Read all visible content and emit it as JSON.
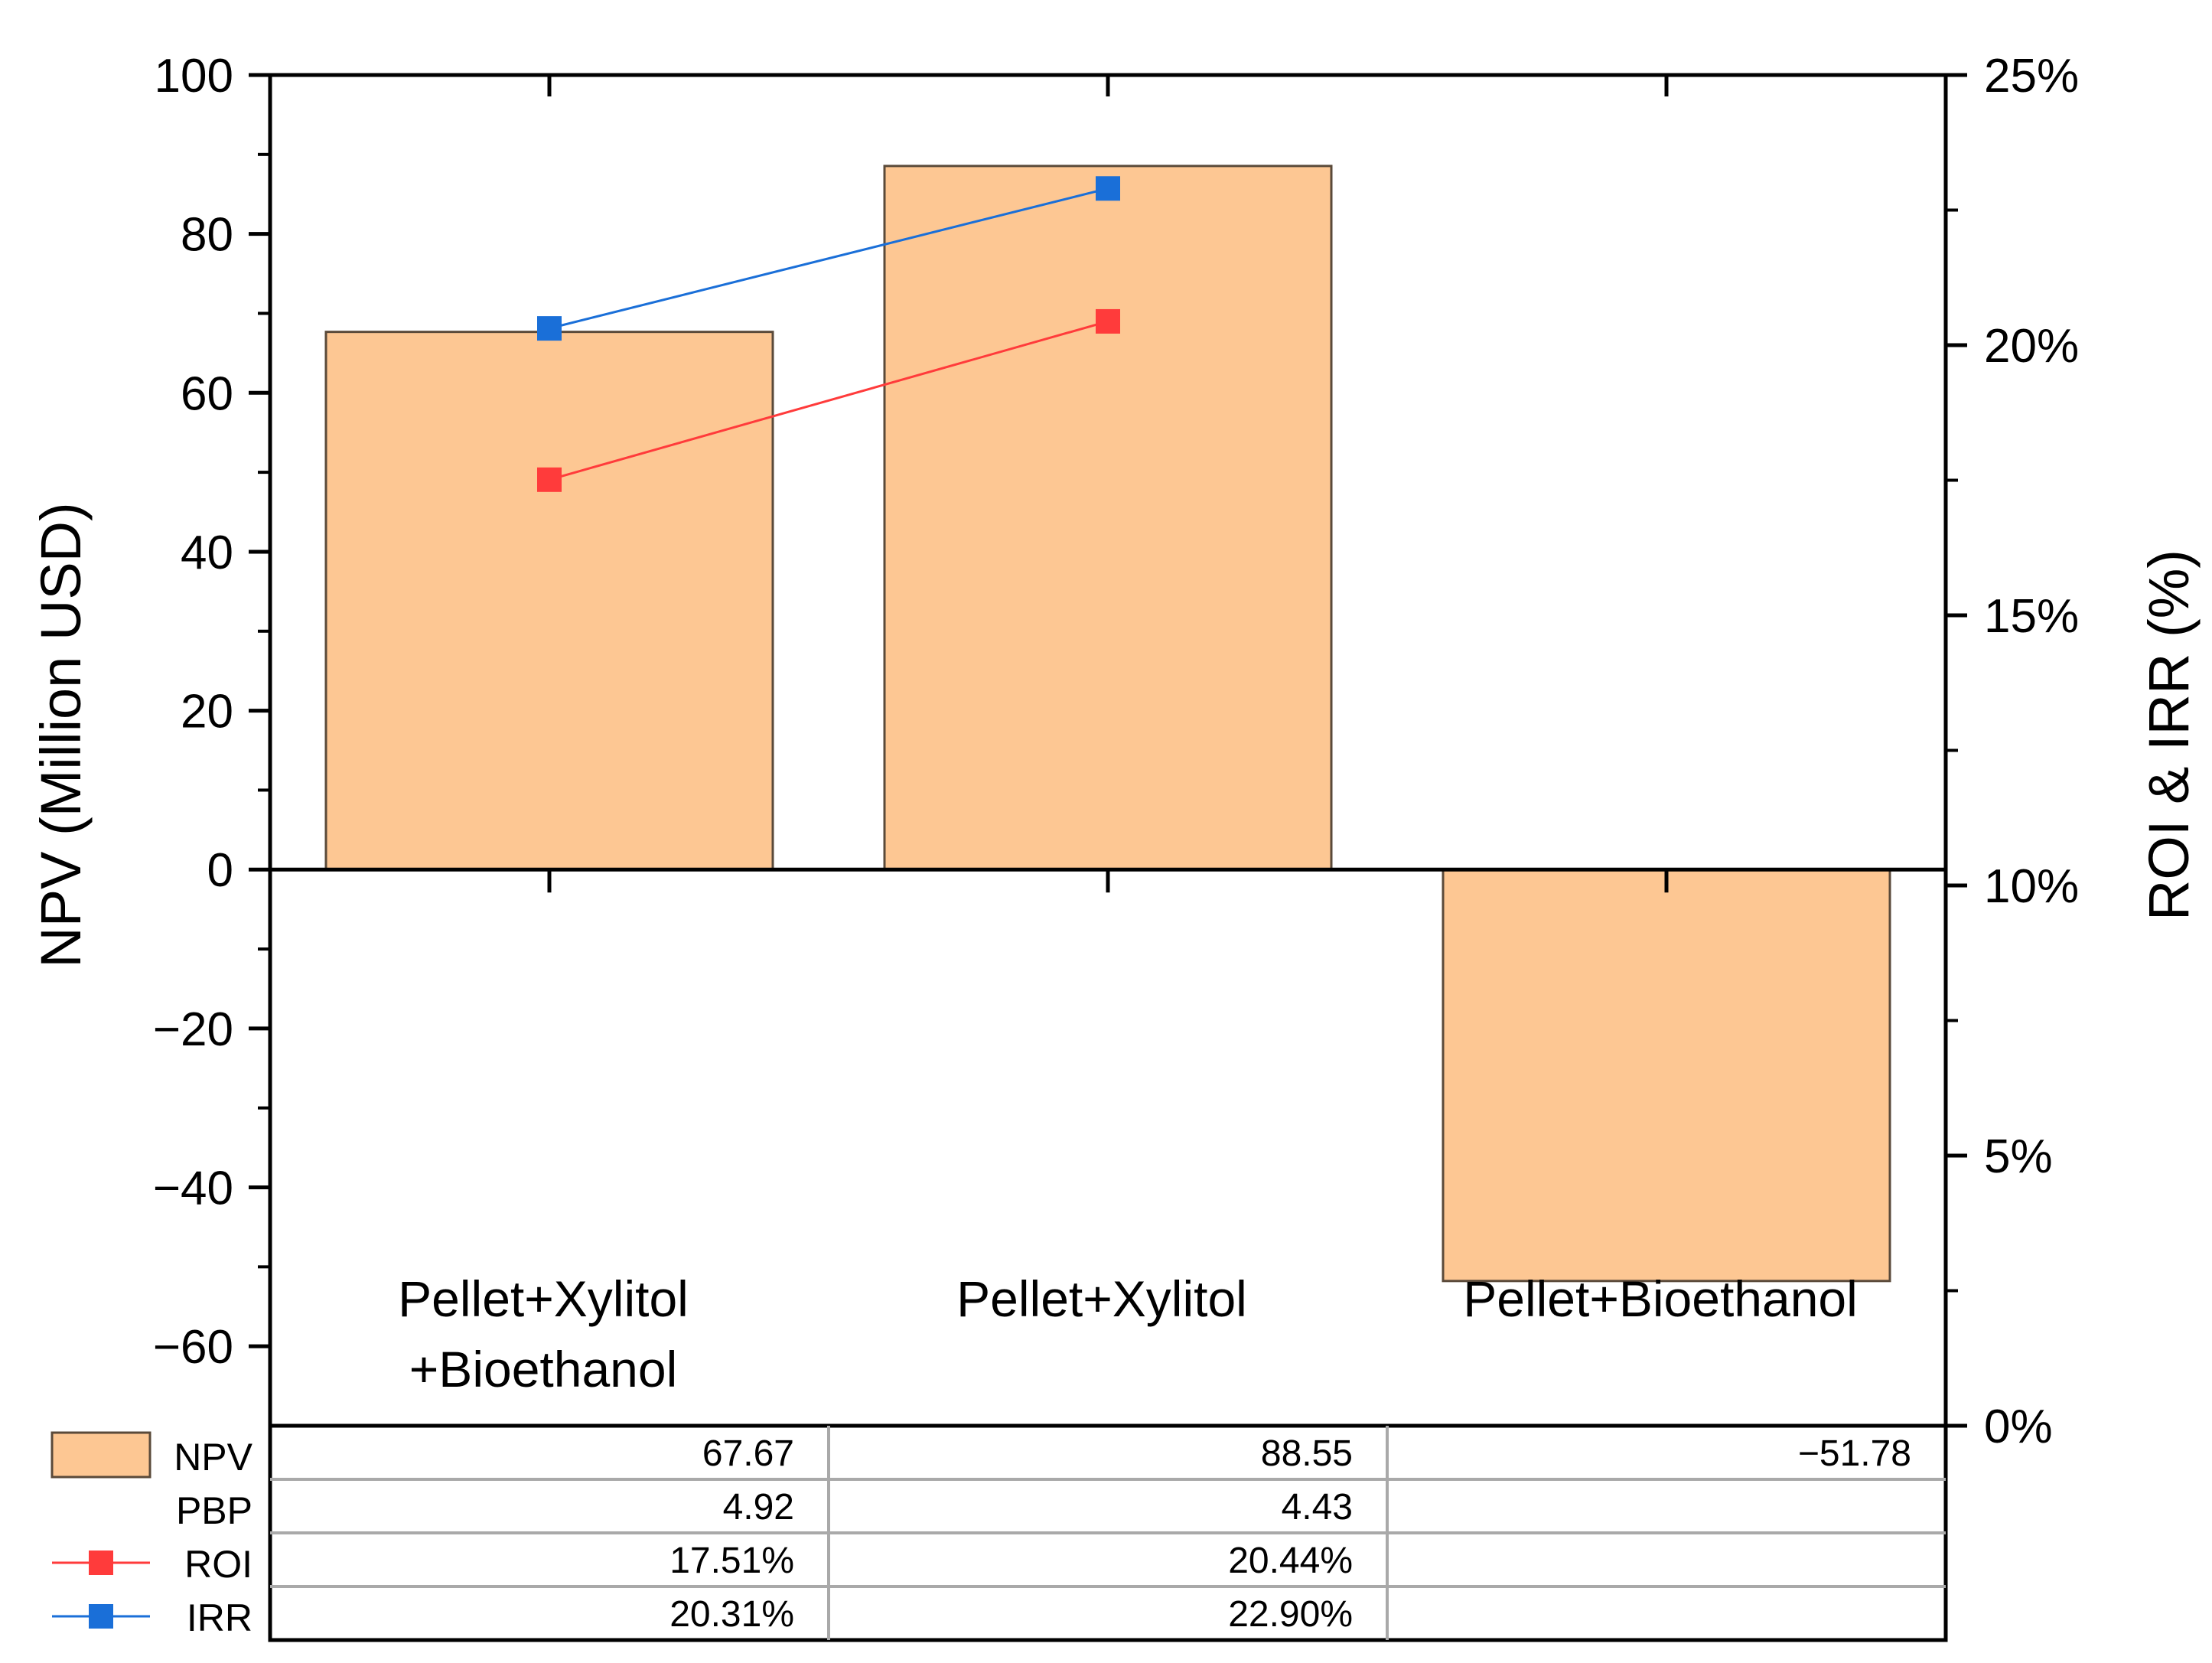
{
  "chart_data": {
    "type": "bar",
    "categories": [
      [
        "Pellet+Xylitol",
        "+Bioethanol"
      ],
      [
        "Pellet+Xylitol"
      ],
      [
        "Pellet+Bioethanol"
      ]
    ],
    "ylabel": "NPV (Million USD)",
    "y2label": "ROI & IRR (%)",
    "ylim": [
      -70,
      100
    ],
    "y_ticks": [
      100,
      80,
      60,
      40,
      20,
      0,
      -20,
      -40,
      -60
    ],
    "y_tick_labels": [
      "100",
      "80",
      "60",
      "40",
      "20",
      "0",
      "−20",
      "−40",
      "−60"
    ],
    "y2lim": [
      0,
      25
    ],
    "y2_ticks": [
      25,
      20,
      15,
      10,
      5,
      0
    ],
    "y2_tick_labels": [
      "25%",
      "20%",
      "15%",
      "10%",
      "5%",
      "0%"
    ],
    "series": [
      {
        "name": "NPV",
        "kind": "bar",
        "axis": "left",
        "color": "#fdc793",
        "edge": "#5a4a3a",
        "values": [
          67.67,
          88.55,
          -51.78
        ]
      },
      {
        "name": "ROI",
        "kind": "line",
        "axis": "right",
        "color": "#ff3b3b",
        "values": [
          17.51,
          20.44,
          null
        ]
      },
      {
        "name": "IRR",
        "kind": "line",
        "axis": "right",
        "color": "#1a6fd8",
        "values": [
          20.31,
          22.9,
          null
        ]
      }
    ],
    "table": {
      "rows": [
        {
          "label": "NPV",
          "marker": "bar",
          "cells": [
            "67.67",
            "88.55",
            "−51.78"
          ]
        },
        {
          "label": "PBP",
          "marker": "none",
          "cells": [
            "4.92",
            "4.43",
            ""
          ]
        },
        {
          "label": "ROI",
          "marker": "line-red",
          "cells": [
            "17.51%",
            "20.44%",
            ""
          ]
        },
        {
          "label": "IRR",
          "marker": "line-blue",
          "cells": [
            "20.31%",
            "22.90%",
            ""
          ]
        }
      ]
    }
  }
}
